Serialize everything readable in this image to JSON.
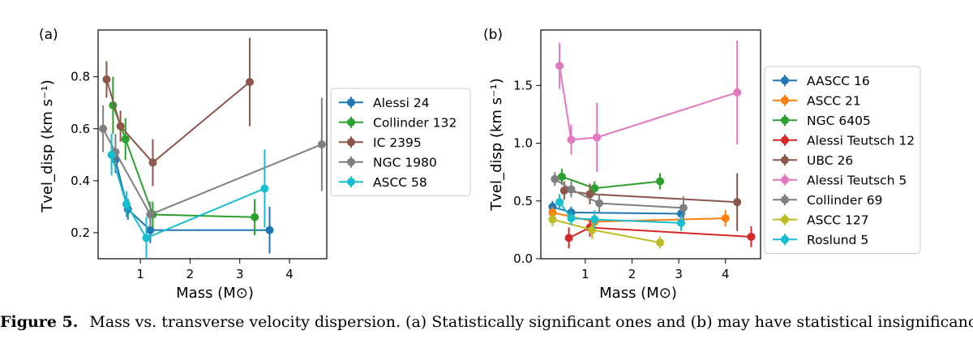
{
  "caption": {
    "label": "Figure 5.",
    "text": "Mass vs. transverse velocity dispersion. (a) Statistically significant ones and (b) may have statistical insignificance."
  },
  "chart_data": [
    {
      "type": "line",
      "panel_label": "(a)",
      "xlabel": "Mass (M⊙)",
      "ylabel": "Tvel_disp (km s⁻¹)",
      "xlim": [
        0.15,
        4.75
      ],
      "ylim": [
        0.1,
        0.98
      ],
      "xticks": [
        1,
        2,
        3,
        4
      ],
      "yticks": [
        0.2,
        0.4,
        0.6,
        0.8
      ],
      "ytick_labels": [
        "0.2",
        "0.4",
        "0.6",
        "0.8"
      ],
      "legend_position": "outside-right",
      "series": [
        {
          "name": "Alessi 24",
          "color": "#1f77b4",
          "points": [
            [
              0.5,
              0.48,
              0.05
            ],
            [
              0.75,
              0.29,
              0.04
            ],
            [
              1.2,
              0.21,
              0.05
            ],
            [
              3.6,
              0.21,
              0.09
            ]
          ]
        },
        {
          "name": "Collinder 132",
          "color": "#2ca02c",
          "points": [
            [
              0.45,
              0.69,
              0.11
            ],
            [
              0.7,
              0.56,
              0.08
            ],
            [
              1.25,
              0.27,
              0.05
            ],
            [
              3.3,
              0.26,
              0.07
            ]
          ]
        },
        {
          "name": "IC 2395",
          "color": "#8c564b",
          "points": [
            [
              0.32,
              0.79,
              0.07
            ],
            [
              0.6,
              0.61,
              0.06
            ],
            [
              1.25,
              0.47,
              0.09
            ],
            [
              3.2,
              0.78,
              0.17
            ]
          ]
        },
        {
          "name": "NGC 1980",
          "color": "#7f7f7f",
          "points": [
            [
              0.25,
              0.6,
              0.09
            ],
            [
              0.5,
              0.51,
              0.07
            ],
            [
              1.2,
              0.27,
              0.05
            ],
            [
              4.65,
              0.54,
              0.18
            ]
          ]
        },
        {
          "name": "ASCC 58",
          "color": "#17becf",
          "points": [
            [
              0.42,
              0.5,
              0.08
            ],
            [
              0.72,
              0.31,
              0.05
            ],
            [
              1.12,
              0.18,
              0.08
            ],
            [
              3.5,
              0.37,
              0.15
            ]
          ]
        }
      ]
    },
    {
      "type": "line",
      "panel_label": "(b)",
      "xlabel": "Mass (M⊙)",
      "ylabel": "Tvel_disp (km s⁻¹)",
      "xlim": [
        0.05,
        4.75
      ],
      "ylim": [
        0.0,
        1.98
      ],
      "xticks": [
        1,
        2,
        3,
        4
      ],
      "yticks": [
        0.0,
        0.5,
        1.0,
        1.5
      ],
      "ytick_labels": [
        "0.0",
        "0.5",
        "1.0",
        "1.5"
      ],
      "legend_position": "outside-right",
      "series": [
        {
          "name": "AASCC 16",
          "color": "#1f77b4",
          "points": [
            [
              0.3,
              0.45,
              0.05
            ],
            [
              0.7,
              0.4,
              0.05
            ],
            [
              3.05,
              0.39,
              0.06
            ]
          ]
        },
        {
          "name": "ASCC 21",
          "color": "#ff7f0e",
          "points": [
            [
              0.3,
              0.4,
              0.05
            ],
            [
              1.2,
              0.32,
              0.06
            ],
            [
              4.0,
              0.35,
              0.07
            ]
          ]
        },
        {
          "name": "NGC 6405",
          "color": "#2ca02c",
          "points": [
            [
              0.5,
              0.71,
              0.07
            ],
            [
              1.2,
              0.61,
              0.06
            ],
            [
              2.6,
              0.67,
              0.07
            ]
          ]
        },
        {
          "name": "Alessi Teutsch 12",
          "color": "#d62728",
          "points": [
            [
              0.65,
              0.18,
              0.09
            ],
            [
              1.1,
              0.27,
              0.08
            ],
            [
              4.55,
              0.19,
              0.09
            ]
          ]
        },
        {
          "name": "UBC 26",
          "color": "#8c564b",
          "points": [
            [
              0.55,
              0.59,
              0.08
            ],
            [
              1.1,
              0.56,
              0.09
            ],
            [
              4.25,
              0.49,
              0.25
            ]
          ]
        },
        {
          "name": "Alessi Teutsch 5",
          "color": "#e377c2",
          "points": [
            [
              0.45,
              1.67,
              0.2
            ],
            [
              0.7,
              1.03,
              0.13
            ],
            [
              1.25,
              1.05,
              0.3
            ],
            [
              4.25,
              1.44,
              0.45
            ]
          ]
        },
        {
          "name": "Collinder 69",
          "color": "#7f7f7f",
          "points": [
            [
              0.35,
              0.69,
              0.06
            ],
            [
              0.7,
              0.6,
              0.07
            ],
            [
              1.3,
              0.48,
              0.08
            ],
            [
              3.1,
              0.44,
              0.1
            ]
          ]
        },
        {
          "name": "ASCC 127",
          "color": "#bcbd22",
          "points": [
            [
              0.3,
              0.34,
              0.06
            ],
            [
              1.15,
              0.25,
              0.08
            ],
            [
              2.6,
              0.14,
              0.05
            ]
          ]
        },
        {
          "name": "Roslund 5",
          "color": "#17becf",
          "points": [
            [
              0.45,
              0.49,
              0.07
            ],
            [
              0.7,
              0.35,
              0.06
            ],
            [
              1.2,
              0.34,
              0.08
            ],
            [
              3.05,
              0.31,
              0.07
            ]
          ]
        }
      ]
    }
  ]
}
